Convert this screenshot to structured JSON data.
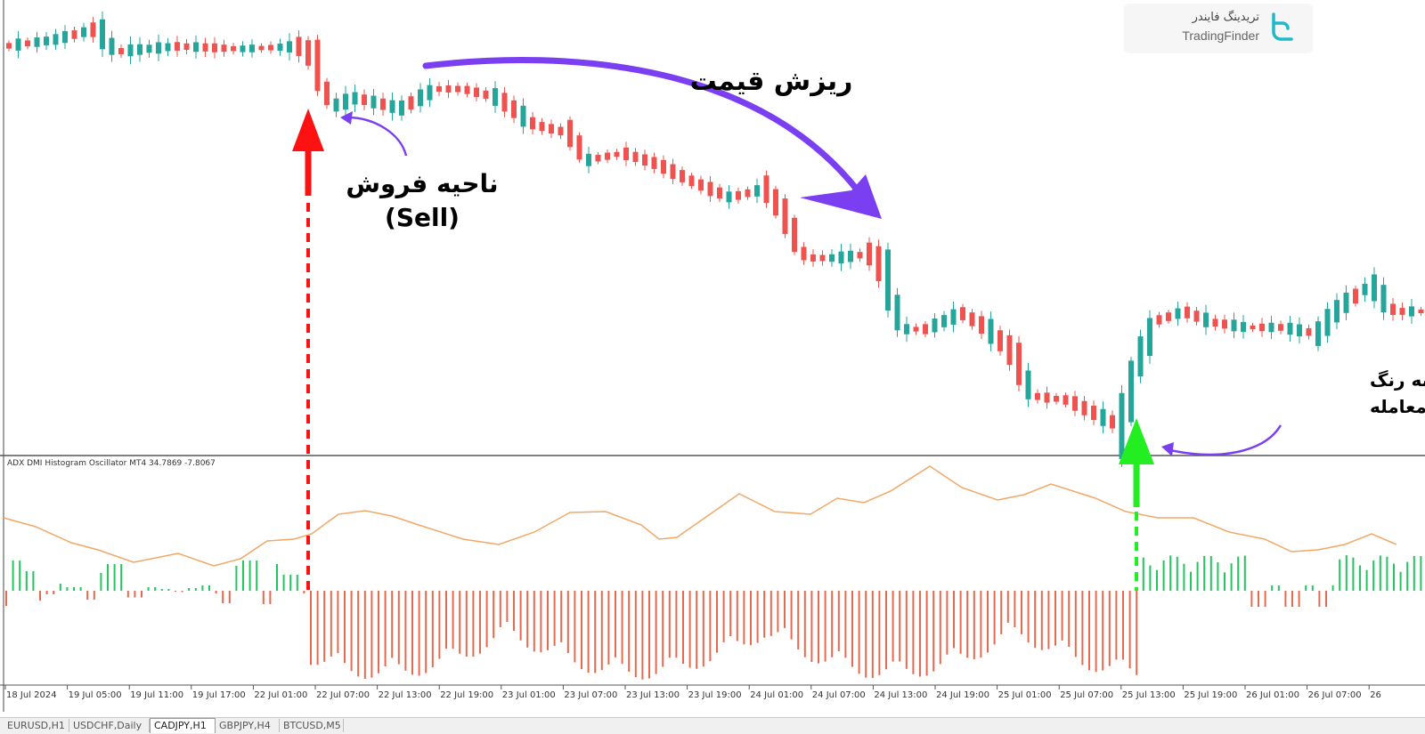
{
  "indicator": {
    "label": "ADX DMI Histogram Oscillator MT4 34.7869 -7.8067"
  },
  "annotations": {
    "price_drop": "ریزش قیمت",
    "sell_zone_line1": "ناحیه فروش",
    "sell_zone_line2": "(Sell)",
    "exit_line1": "تغییر رنگ ADX به رنگ",
    "exit_line2": "سبز و خروج از معامله"
  },
  "logo": {
    "fa_name": "تریدینگ فایندر",
    "en_name": "TradingFinder"
  },
  "time_axis": [
    "18 Jul 2024",
    "19 Jul 05:00",
    "19 Jul 11:00",
    "19 Jul 17:00",
    "22 Jul 01:00",
    "22 Jul 07:00",
    "22 Jul 13:00",
    "22 Jul 19:00",
    "23 Jul 01:00",
    "23 Jul 07:00",
    "23 Jul 13:00",
    "23 Jul 19:00",
    "24 Jul 01:00",
    "24 Jul 07:00",
    "24 Jul 13:00",
    "24 Jul 19:00",
    "25 Jul 01:00",
    "25 Jul 07:00",
    "25 Jul 13:00",
    "25 Jul 19:00",
    "26 Jul 01:00",
    "26 Jul 07:00",
    "26"
  ],
  "tabs": [
    {
      "label": "EURUSD,H1"
    },
    {
      "label": "USDCHF,Daily"
    },
    {
      "label": "CADJPY,H1",
      "active": true
    },
    {
      "label": "GBPJPY,H4"
    },
    {
      "label": "BTCUSD,M5"
    }
  ],
  "colors": {
    "bull": "#26a69a",
    "bear": "#ef5350",
    "hist_pos": "#22c55e",
    "hist_neg": "#e4694f",
    "adx_line": "#f0a868",
    "sell_arrow": "#ff1111",
    "exit_arrow": "#22ee22",
    "curve_arrow": "#7b3ff2"
  },
  "icons": {
    "logo_mark": "tradingfinder-logo-icon"
  }
}
